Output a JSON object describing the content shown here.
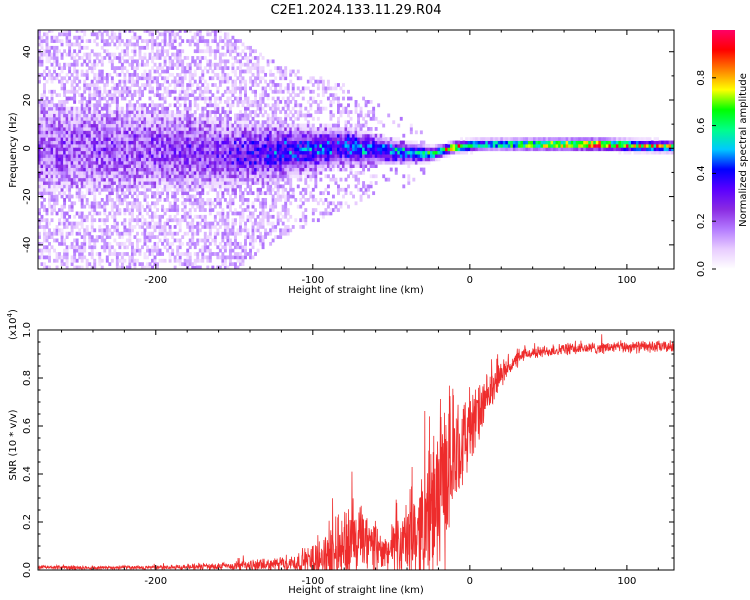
{
  "figure_title": "C2E1.2024.133.11.29.R04",
  "chart_data": [
    {
      "type": "heatmap",
      "title": "",
      "xlabel": "Height of straight line (km)",
      "ylabel": "Frequency (Hz)",
      "xlim": [
        -275,
        130
      ],
      "ylim": [
        -50,
        49
      ],
      "x_ticks": [
        -200,
        -100,
        0,
        100
      ],
      "y_ticks": [
        -40,
        -20,
        0,
        20,
        40
      ],
      "colorbar": {
        "label": "Normalized spectral amplitude",
        "range": [
          0.0,
          1.0
        ],
        "ticks": [
          "0.0",
          "0.2",
          "0.4",
          "0.6",
          "0.8"
        ],
        "colors": [
          "#ffffff",
          "#e8ccff",
          "#b47bff",
          "#8a2be2",
          "#5a00ff",
          "#0000ff",
          "#00c8ff",
          "#00ff88",
          "#00ff00",
          "#ffff00",
          "#ff8000",
          "#ff0000",
          "#ff0066"
        ]
      },
      "ridge": [
        {
          "x": -275,
          "f": -1,
          "amp": 0.12,
          "spread": 45
        },
        {
          "x": -200,
          "f": -1,
          "amp": 0.14,
          "spread": 40
        },
        {
          "x": -150,
          "f": -3,
          "amp": 0.2,
          "spread": 30
        },
        {
          "x": -120,
          "f": -2,
          "amp": 0.32,
          "spread": 22
        },
        {
          "x": -80,
          "f": 0,
          "amp": 0.38,
          "spread": 16
        },
        {
          "x": -50,
          "f": -2,
          "amp": 0.45,
          "spread": 10
        },
        {
          "x": -25,
          "f": -3,
          "amp": 0.6,
          "spread": 6
        },
        {
          "x": -10,
          "f": 0,
          "amp": 0.82,
          "spread": 4
        },
        {
          "x": 10,
          "f": 1,
          "amp": 0.55,
          "spread": 3
        },
        {
          "x": 50,
          "f": 1,
          "amp": 0.75,
          "spread": 3
        },
        {
          "x": 80,
          "f": 1,
          "amp": 0.9,
          "spread": 3
        },
        {
          "x": 130,
          "f": 0,
          "amp": 0.7,
          "spread": 3
        }
      ]
    },
    {
      "type": "line",
      "title": "",
      "xlabel": "Height of straight line (km)",
      "ylabel": "SNR (10 * v/v)",
      "y_multiplier": "(x10",
      "y_multiplier_exp": "4",
      "y_multiplier_close": ")",
      "xlim": [
        -275,
        130
      ],
      "ylim": [
        0.0,
        1.0
      ],
      "x_ticks": [
        -200,
        -100,
        0,
        100
      ],
      "y_ticks": [
        "0.0",
        "0.2",
        "0.4",
        "0.6",
        "0.8",
        "1.0"
      ],
      "color": "#ee2c2c",
      "envelope": [
        {
          "x": -275,
          "base": 0.01,
          "amp": 0.01
        },
        {
          "x": -200,
          "base": 0.01,
          "amp": 0.01
        },
        {
          "x": -160,
          "base": 0.015,
          "amp": 0.02
        },
        {
          "x": -130,
          "base": 0.02,
          "amp": 0.03
        },
        {
          "x": -110,
          "base": 0.03,
          "amp": 0.05
        },
        {
          "x": -95,
          "base": 0.05,
          "amp": 0.1
        },
        {
          "x": -80,
          "base": 0.1,
          "amp": 0.22
        },
        {
          "x": -70,
          "base": 0.12,
          "amp": 0.2
        },
        {
          "x": -55,
          "base": 0.07,
          "amp": 0.1
        },
        {
          "x": -45,
          "base": 0.1,
          "amp": 0.15
        },
        {
          "x": -35,
          "base": 0.15,
          "amp": 0.25
        },
        {
          "x": -25,
          "base": 0.22,
          "amp": 0.35
        },
        {
          "x": -18,
          "base": 0.35,
          "amp": 0.45
        },
        {
          "x": -8,
          "base": 0.5,
          "amp": 0.25
        },
        {
          "x": 0,
          "base": 0.58,
          "amp": 0.2
        },
        {
          "x": 10,
          "base": 0.7,
          "amp": 0.12
        },
        {
          "x": 20,
          "base": 0.82,
          "amp": 0.06
        },
        {
          "x": 35,
          "base": 0.9,
          "amp": 0.03
        },
        {
          "x": 60,
          "base": 0.92,
          "amp": 0.03
        },
        {
          "x": 100,
          "base": 0.93,
          "amp": 0.03
        },
        {
          "x": 130,
          "base": 0.93,
          "amp": 0.03
        }
      ]
    }
  ]
}
